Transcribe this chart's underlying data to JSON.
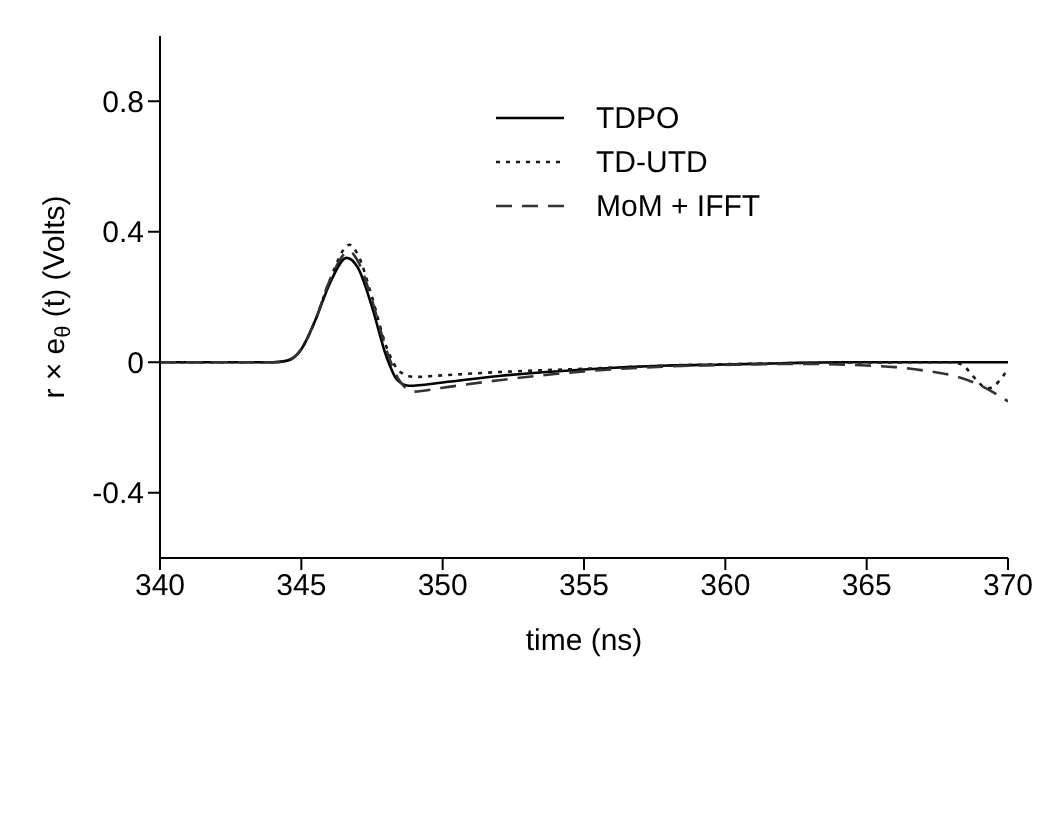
{
  "chart_data": {
    "type": "line",
    "xlabel": "time (ns)",
    "ylabel": "r × e$_{θ}$ (t) (Volts)",
    "xlim": [
      340,
      370
    ],
    "xticks": [
      340,
      345,
      350,
      355,
      360,
      365,
      370
    ],
    "ylim": [
      -0.6,
      1.0
    ],
    "yticks": [
      -0.4,
      0,
      0.4,
      0.8
    ],
    "grid": false,
    "legend": "top right",
    "marker": "none",
    "series": [
      {
        "name": "TDPO",
        "color": "#000000",
        "line_style": "solid",
        "x": [
          340,
          344,
          344.5,
          345,
          345.5,
          346,
          346.6,
          347,
          347.5,
          348,
          348.4,
          348.8,
          350,
          352,
          355,
          358,
          360,
          362,
          364,
          370
        ],
        "values": [
          0,
          0,
          0.005,
          0.04,
          0.13,
          0.24,
          0.32,
          0.29,
          0.17,
          0.02,
          -0.055,
          -0.072,
          -0.062,
          -0.042,
          -0.022,
          -0.01,
          -0.007,
          -0.003,
          0,
          0
        ]
      },
      {
        "name": "TD-UTD",
        "color": "#1a1a1a",
        "line_style": "dotted",
        "x": [
          340,
          344,
          344.5,
          345,
          345.5,
          346,
          346.7,
          347,
          347.5,
          348,
          348.5,
          349,
          350,
          352,
          355,
          358,
          360,
          363,
          368,
          368.3,
          369.3,
          370
        ],
        "values": [
          0,
          0,
          0.005,
          0.04,
          0.13,
          0.25,
          0.36,
          0.33,
          0.2,
          0.05,
          -0.03,
          -0.045,
          -0.04,
          -0.03,
          -0.02,
          -0.01,
          -0.006,
          -0.002,
          0,
          -0.005,
          -0.08,
          -0.02
        ]
      },
      {
        "name": "MoM + IFFT",
        "color": "#333333",
        "line_style": "dashed",
        "x": [
          340,
          344,
          344.5,
          345,
          345.5,
          346,
          346.7,
          347,
          347.5,
          348,
          348.5,
          349,
          350,
          352,
          355,
          358,
          360,
          363,
          365,
          366,
          367,
          368,
          369,
          370
        ],
        "values": [
          0,
          0,
          0.005,
          0.04,
          0.13,
          0.25,
          0.34,
          0.31,
          0.19,
          0.04,
          -0.06,
          -0.09,
          -0.078,
          -0.055,
          -0.028,
          -0.013,
          -0.008,
          -0.005,
          -0.01,
          -0.015,
          -0.025,
          -0.04,
          -0.07,
          -0.12
        ]
      }
    ]
  }
}
